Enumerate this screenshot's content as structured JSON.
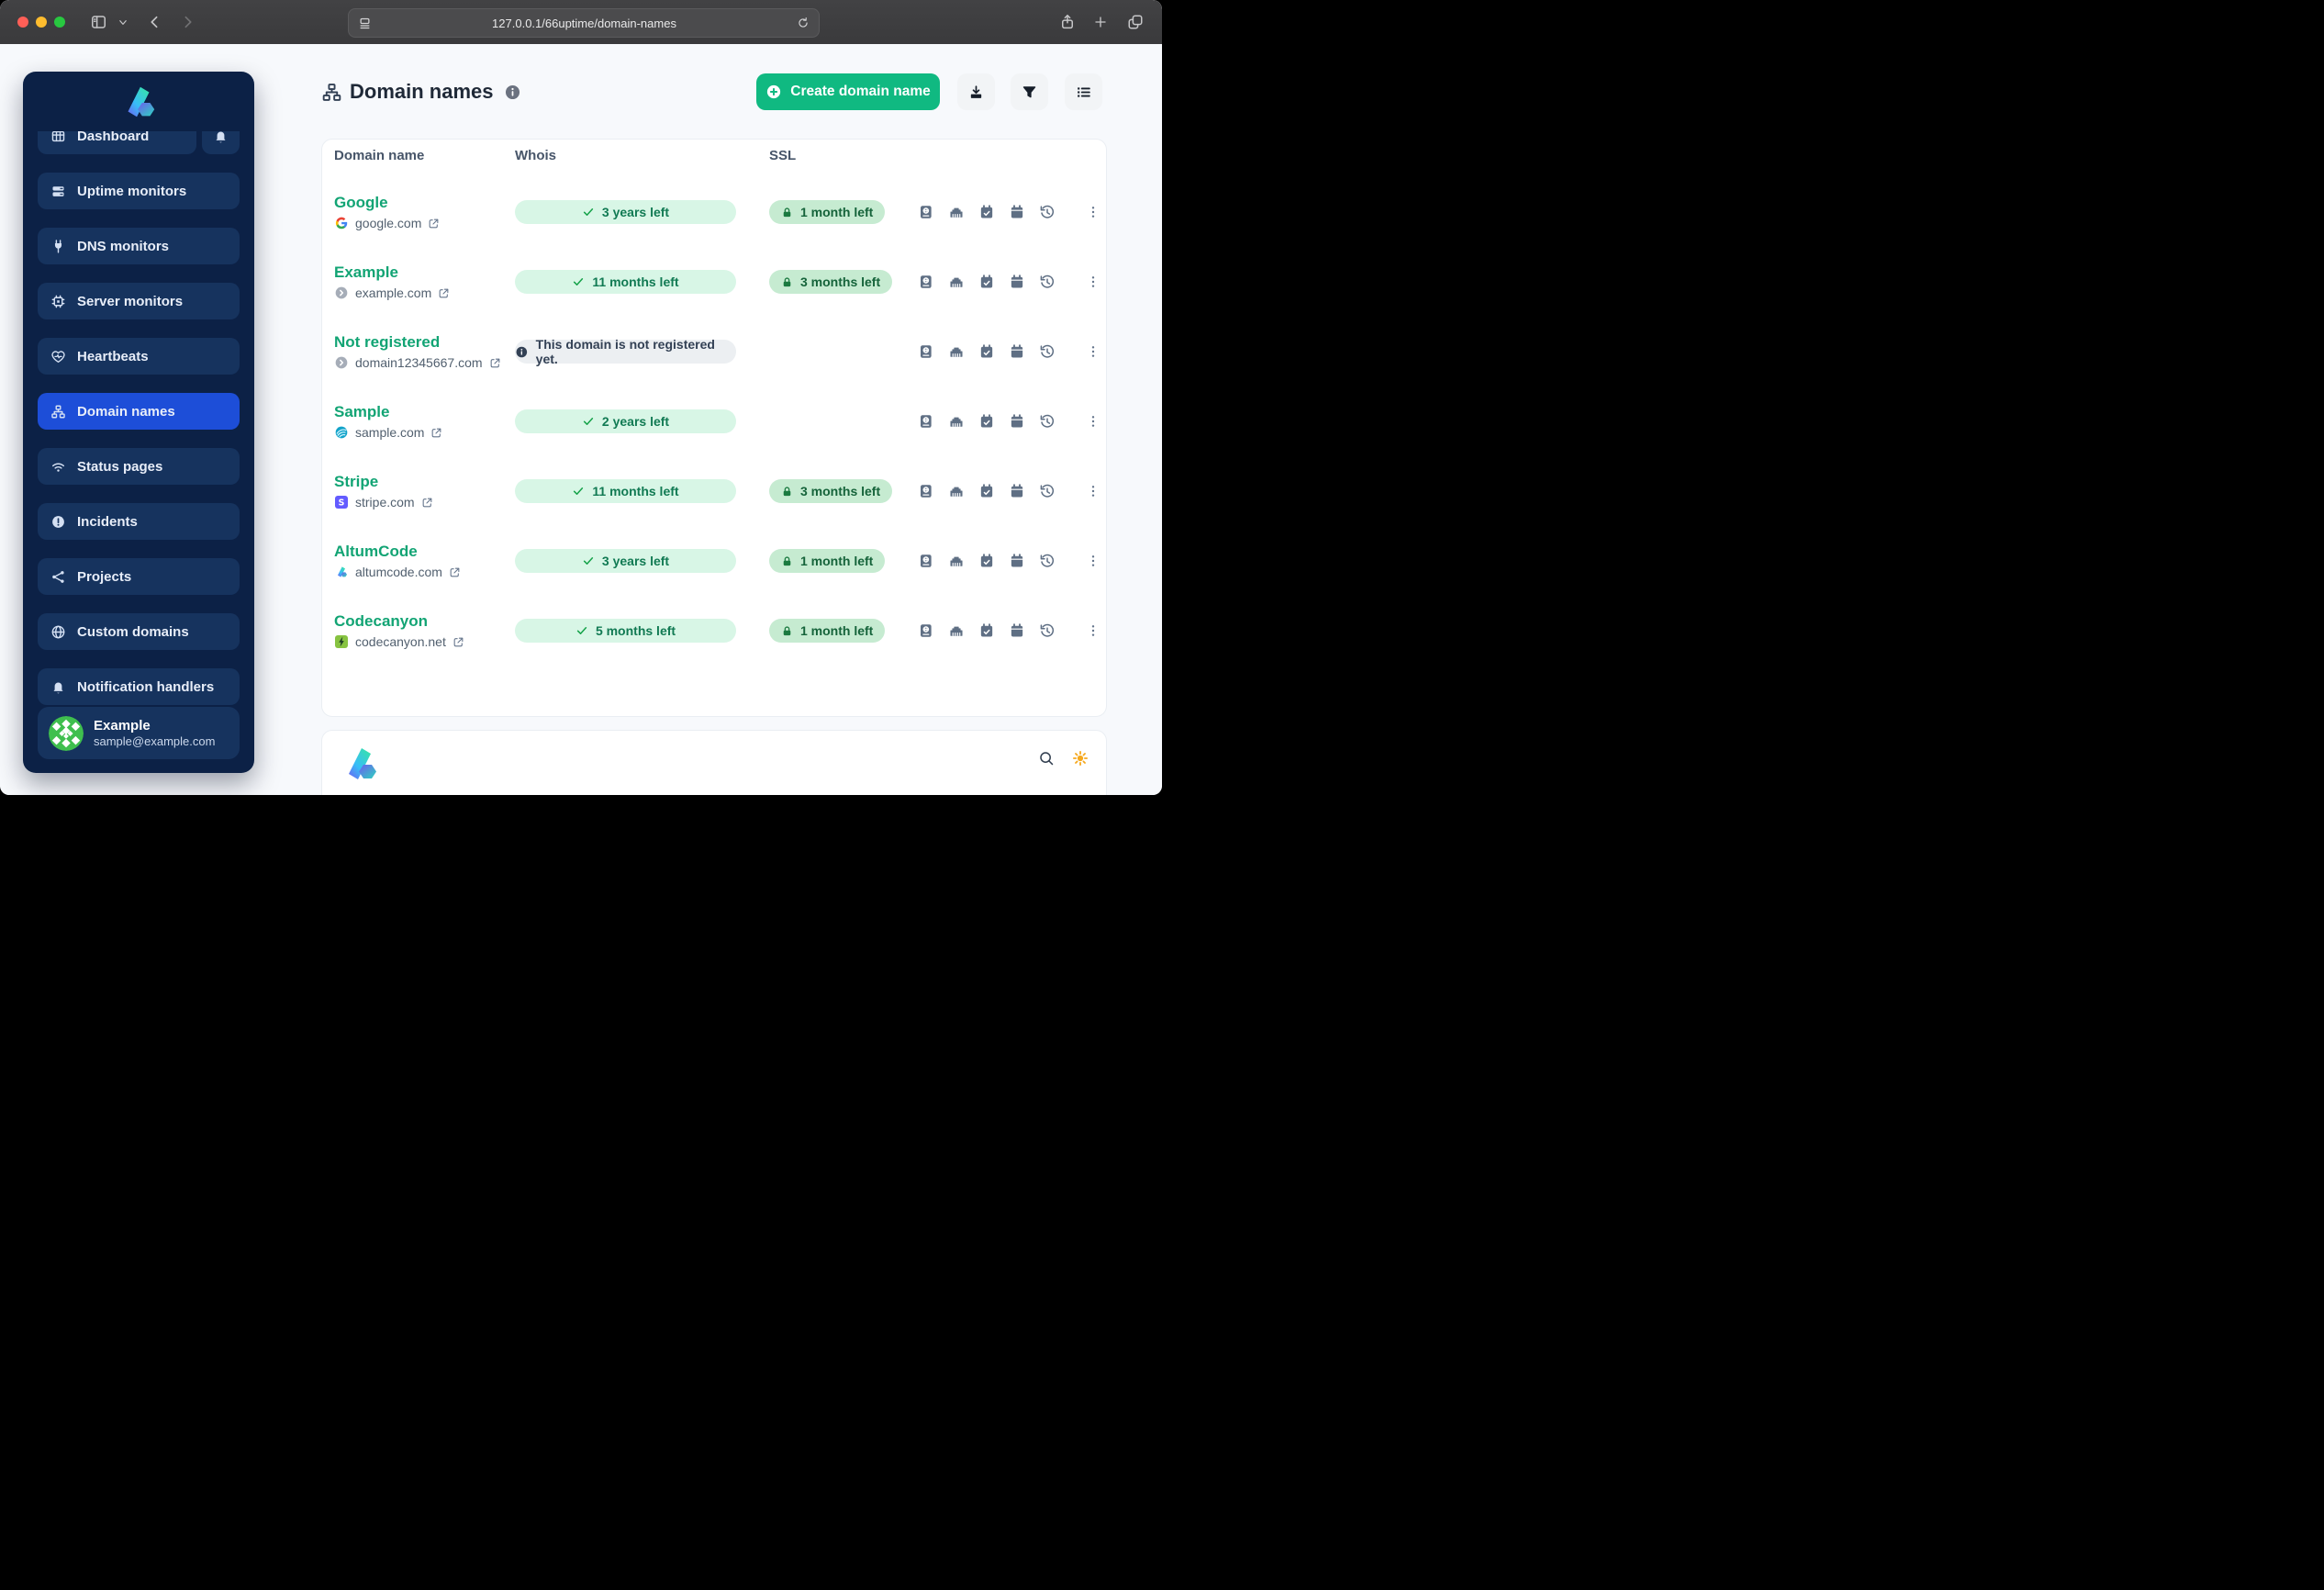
{
  "browser": {
    "url": "127.0.0.1/66uptime/domain-names"
  },
  "sidebar": {
    "nav": [
      {
        "label": "Dashboard",
        "icon": "grid-icon",
        "active": false
      },
      {
        "label": "Uptime monitors",
        "icon": "server-stack-icon",
        "active": false
      },
      {
        "label": "DNS monitors",
        "icon": "plug-icon",
        "active": false
      },
      {
        "label": "Server monitors",
        "icon": "cpu-icon",
        "active": false
      },
      {
        "label": "Heartbeats",
        "icon": "heart-pulse-icon",
        "active": false
      },
      {
        "label": "Domain names",
        "icon": "sitemap-icon",
        "active": true
      },
      {
        "label": "Status pages",
        "icon": "wifi-icon",
        "active": false
      },
      {
        "label": "Incidents",
        "icon": "alert-circle-icon",
        "active": false
      },
      {
        "label": "Projects",
        "icon": "share-nodes-icon",
        "active": false
      },
      {
        "label": "Custom domains",
        "icon": "globe-icon",
        "active": false
      },
      {
        "label": "Notification handlers",
        "icon": "bell-icon",
        "active": false
      }
    ],
    "profile": {
      "name": "Example",
      "email": "sample@example.com"
    }
  },
  "header": {
    "title": "Domain names",
    "create_button": "Create domain name"
  },
  "table": {
    "columns": [
      "Domain name",
      "Whois",
      "SSL"
    ],
    "row_actions": [
      "whois-book-icon",
      "ethernet-icon",
      "calendar-check-icon",
      "calendar-icon",
      "history-icon"
    ],
    "rows": [
      {
        "name": "Google",
        "domain": "google.com",
        "favicon": "google-favicon",
        "whois": "3 years left",
        "whois_type": "ok",
        "ssl": "1 month left"
      },
      {
        "name": "Example",
        "domain": "example.com",
        "favicon": "default-favicon",
        "whois": "11 months left",
        "whois_type": "ok",
        "ssl": "3 months left"
      },
      {
        "name": "Not registered",
        "domain": "domain12345667.com",
        "favicon": "default-favicon",
        "whois": "This domain is not registered yet.",
        "whois_type": "info",
        "ssl": null
      },
      {
        "name": "Sample",
        "domain": "sample.com",
        "favicon": "sample-favicon",
        "whois": "2 years left",
        "whois_type": "ok",
        "ssl": null
      },
      {
        "name": "Stripe",
        "domain": "stripe.com",
        "favicon": "stripe-favicon",
        "whois": "11 months left",
        "whois_type": "ok",
        "ssl": "3 months left"
      },
      {
        "name": "AltumCode",
        "domain": "altumcode.com",
        "favicon": "altumcode-favicon",
        "whois": "3 years left",
        "whois_type": "ok",
        "ssl": "1 month left"
      },
      {
        "name": "Codecanyon",
        "domain": "codecanyon.net",
        "favicon": "codecanyon-favicon",
        "whois": "5 months left",
        "whois_type": "ok",
        "ssl": "1 month left"
      }
    ]
  },
  "colors": {
    "accent_green": "#10b981",
    "sidebar_navy": "#0c2146",
    "sidebar_item": "#16335e",
    "active_blue": "#1d4ed8",
    "whois_ok_bg": "#d8f6e6",
    "ssl_ok_bg": "#c6ebd1",
    "info_pill_bg": "#eceff2",
    "link_green": "#12a474",
    "sun_orange": "#f6a81c"
  }
}
